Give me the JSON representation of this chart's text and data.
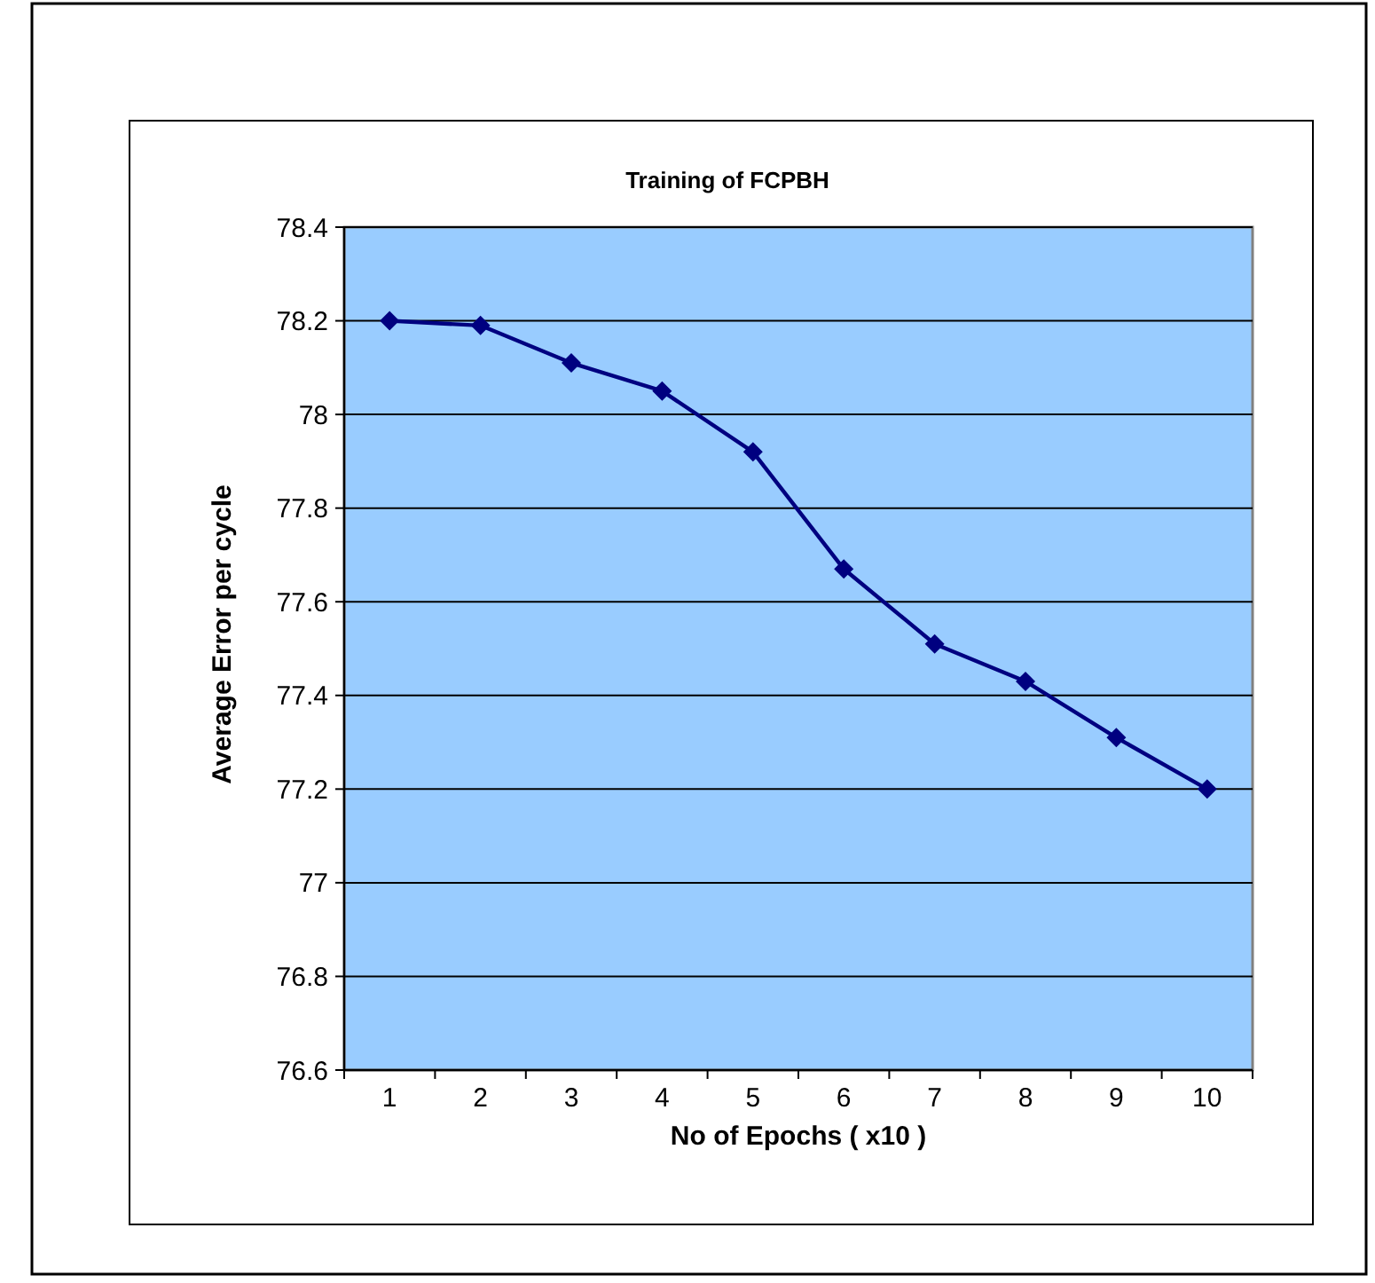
{
  "chart_data": {
    "type": "line",
    "title": "Training of FCPBH",
    "xlabel": "No of Epochs ( x10 )",
    "ylabel": "Average Error per cycle",
    "categories": [
      "1",
      "2",
      "3",
      "4",
      "5",
      "6",
      "7",
      "8",
      "9",
      "10"
    ],
    "series": [
      {
        "color": "#000080",
        "values": [
          78.2,
          78.19,
          78.11,
          78.05,
          77.92,
          77.67,
          77.51,
          77.43,
          77.31,
          77.2
        ]
      }
    ],
    "ylim": [
      76.6,
      78.4
    ],
    "yticks": [
      76.6,
      76.8,
      77,
      77.2,
      77.4,
      77.6,
      77.8,
      78,
      78.2,
      78.4
    ],
    "grid": "y",
    "marker": "diamond",
    "line_style": "solid"
  }
}
